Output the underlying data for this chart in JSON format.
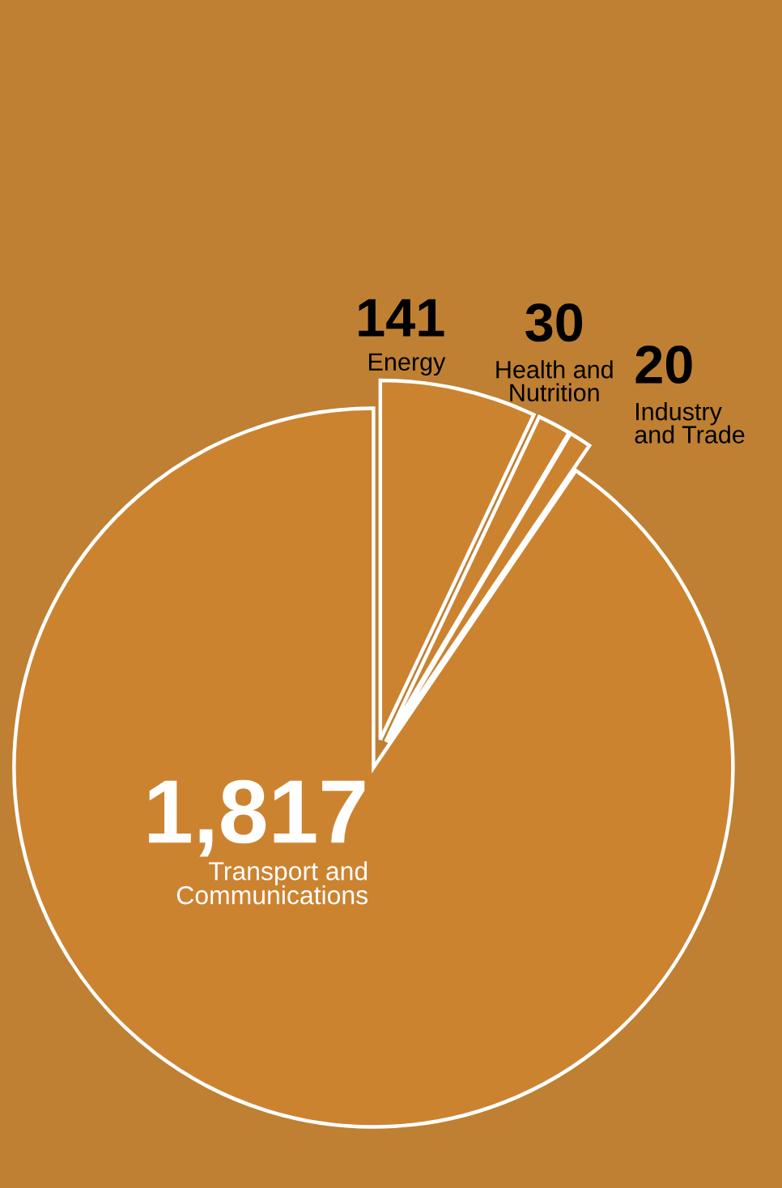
{
  "chart_data": {
    "type": "pie",
    "categories": [
      "Energy",
      "Health and\nNutrition",
      "Industry\nand Trade",
      "Transport and\nCommunications"
    ],
    "values": [
      141,
      30,
      20,
      1817
    ],
    "value_labels": [
      "141",
      "30",
      "20",
      "1,817"
    ],
    "colors": [
      "#cc8330",
      "#cc8330",
      "#cc8330",
      "#cc8330"
    ],
    "legend": false
  }
}
